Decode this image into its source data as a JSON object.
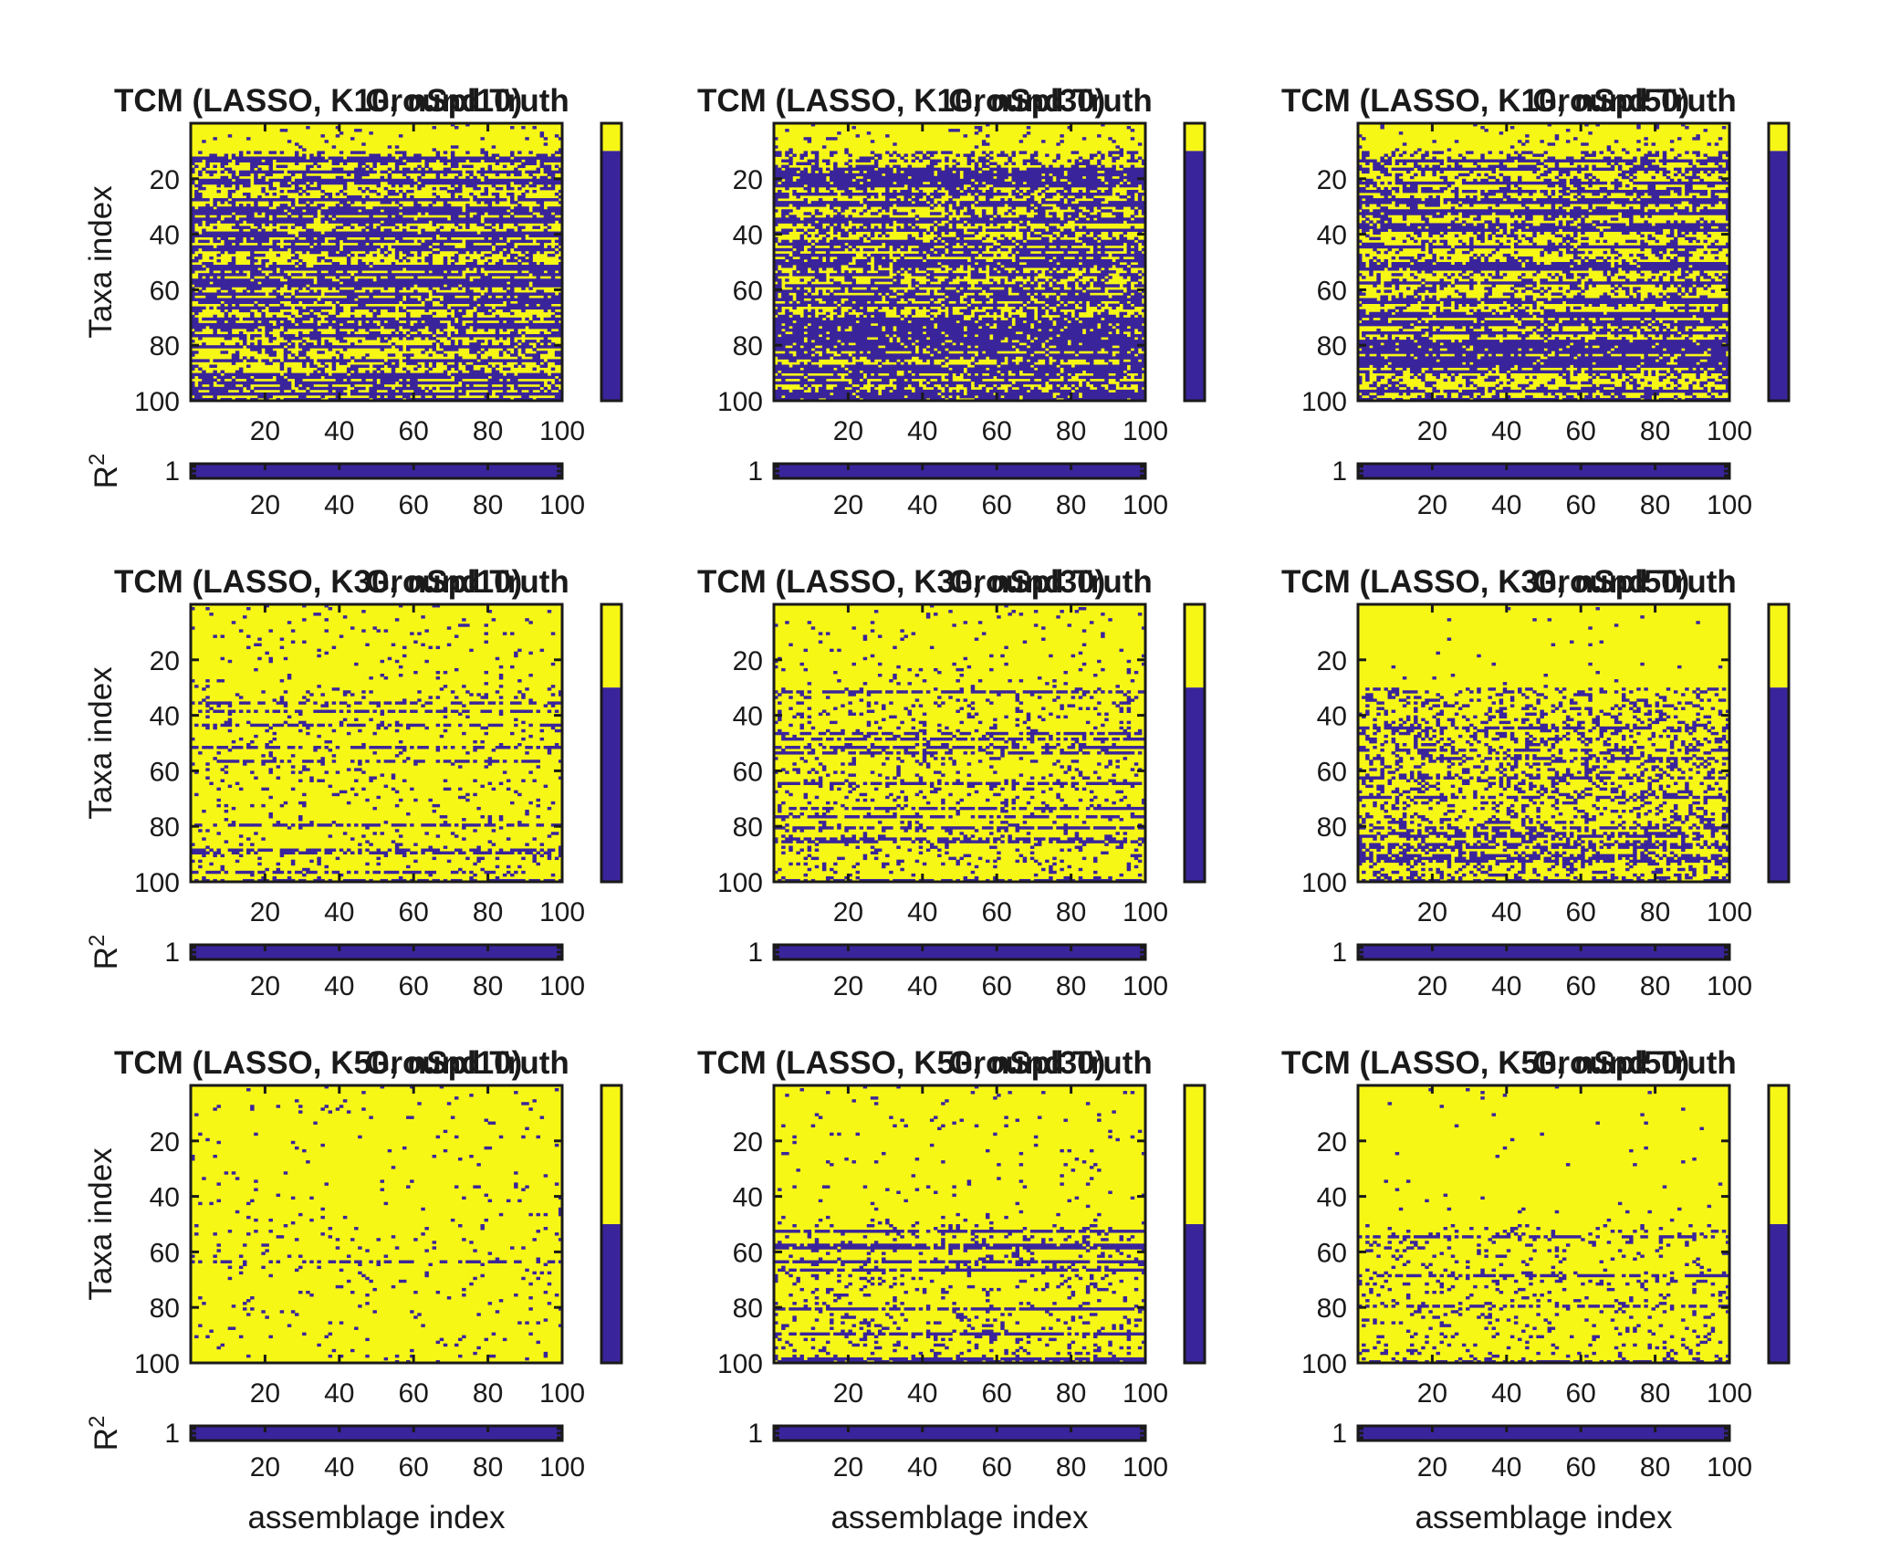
{
  "colors": {
    "high": "#f7f716",
    "low": "#3a249b",
    "frame": "#1a1a1a"
  },
  "chart_data": {
    "type": "heatmap",
    "layout": "3x3 grid of binary heatmaps, each with a colorbar on the right and an R² strip below",
    "n_taxa": 100,
    "n_assemblages": 100,
    "ylabel": "Taxa index",
    "xlabel": "assemblage index",
    "r2_label_base": "R",
    "r2_label_sup": "2",
    "yticks": [
      20,
      40,
      60,
      80,
      100
    ],
    "xticks": [
      20,
      40,
      60,
      80,
      100
    ],
    "r2_tick": "1",
    "r2_values": "all 1",
    "panels": [
      {
        "title": "TCM (LASSO, K10, nSpl10)",
        "overlap_title": "Ground Truth",
        "K": 10,
        "nSpl": 10,
        "ground_truth_in_colorbar": 10,
        "density": "mixed, many dark horizontal bands"
      },
      {
        "title": "TCM (LASSO, K10, nSpl30)",
        "overlap_title": "Ground Truth",
        "K": 10,
        "nSpl": 30,
        "ground_truth_in_colorbar": 10,
        "density": "mixed, many dark horizontal bands"
      },
      {
        "title": "TCM (LASSO, K10, nSpl50)",
        "overlap_title": "Ground Truth",
        "K": 10,
        "nSpl": 50,
        "ground_truth_in_colorbar": 10,
        "density": "mostly dark"
      },
      {
        "title": "TCM (LASSO, K30, nSpl10)",
        "overlap_title": "Ground Truth",
        "K": 30,
        "nSpl": 10,
        "ground_truth_in_colorbar": 30,
        "density": "mostly yellow, sparse dark"
      },
      {
        "title": "TCM (LASSO, K30, nSpl30)",
        "overlap_title": "Ground Truth",
        "K": 30,
        "nSpl": 30,
        "ground_truth_in_colorbar": 30,
        "density": "mostly yellow, dark below row 30"
      },
      {
        "title": "TCM (LASSO, K30, nSpl50)",
        "overlap_title": "Ground Truth",
        "K": 30,
        "nSpl": 50,
        "ground_truth_in_colorbar": 30,
        "density": "yellow top, dense dark below row 30"
      },
      {
        "title": "TCM (LASSO, K50, nSpl10)",
        "overlap_title": "Ground Truth",
        "K": 50,
        "nSpl": 10,
        "ground_truth_in_colorbar": 50,
        "density": "mostly yellow, sparse dark"
      },
      {
        "title": "TCM (LASSO, K50, nSpl30)",
        "overlap_title": "Ground Truth",
        "K": 50,
        "nSpl": 30,
        "ground_truth_in_colorbar": 50,
        "density": "yellow top, dark rows below 55"
      },
      {
        "title": "TCM (LASSO, K50, nSpl50)",
        "overlap_title": "Ground Truth",
        "K": 50,
        "nSpl": 50,
        "ground_truth_in_colorbar": 50,
        "density": "yellow top, dark specks below row 50"
      }
    ],
    "grid": false,
    "legend": "colorbar per panel"
  }
}
